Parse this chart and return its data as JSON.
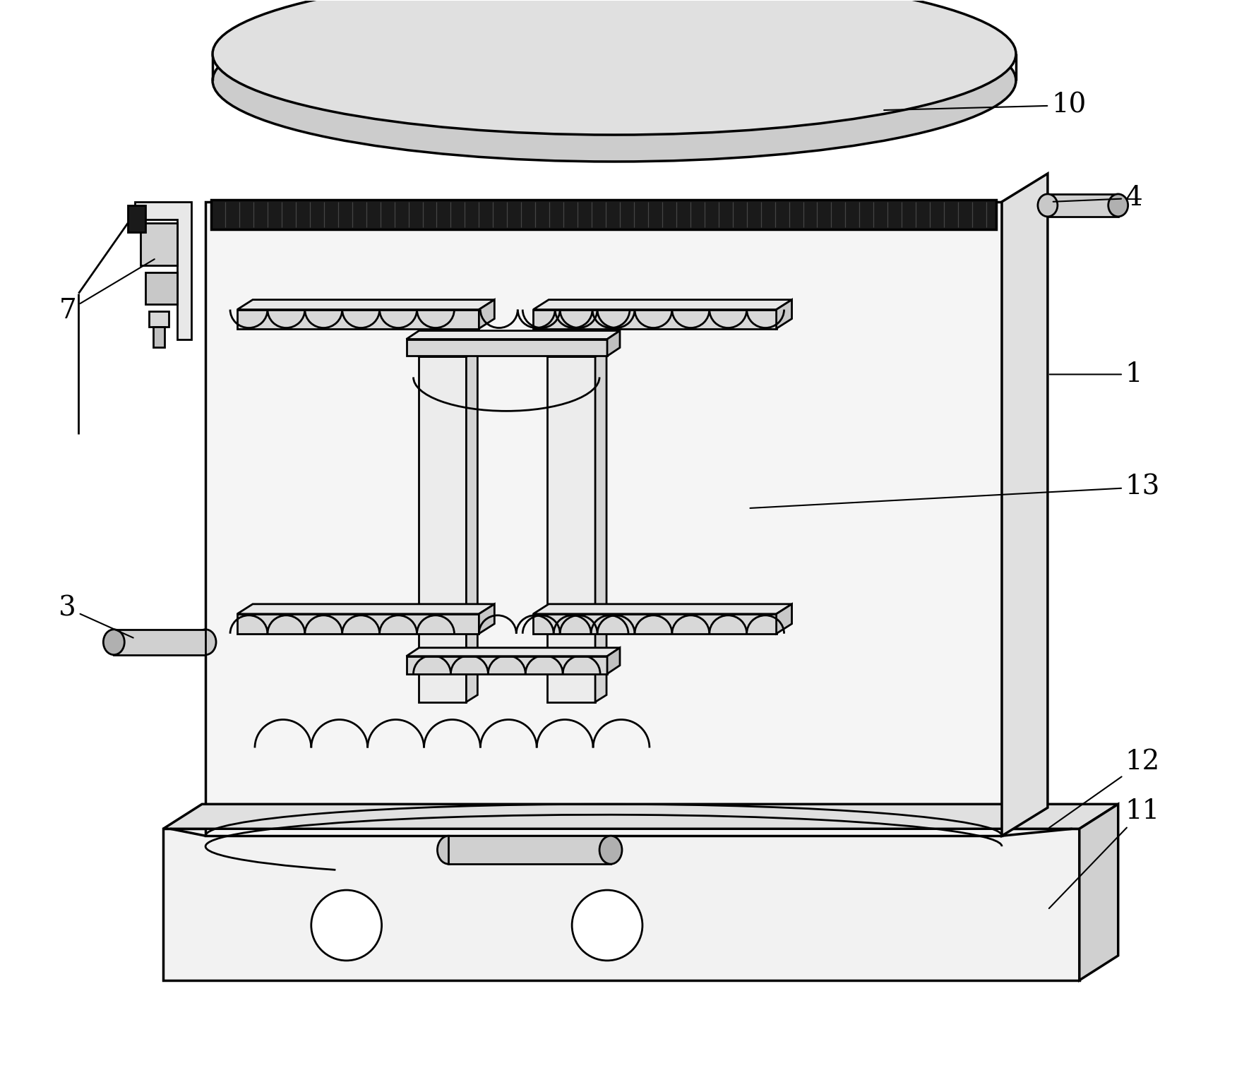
{
  "bg_color": "#ffffff",
  "line_color": "#000000",
  "lw_main": 2.0,
  "lw_thick": 2.5,
  "lw_thin": 1.5,
  "label_fontsize": 28,
  "figsize": [
    17.62,
    15.33
  ],
  "dpi": 100
}
